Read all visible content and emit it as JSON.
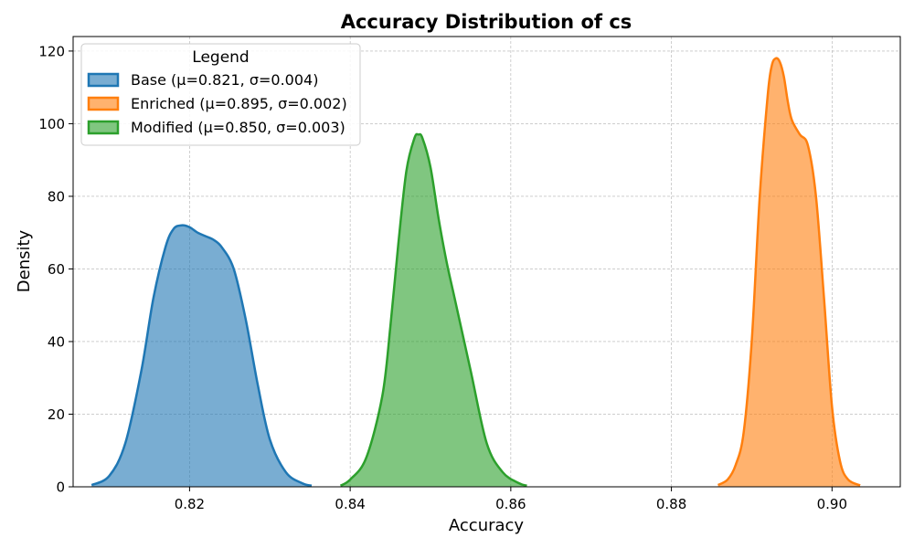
{
  "chart_data": {
    "type": "area",
    "title": "Accuracy Distribution of cs",
    "xlabel": "Accuracy",
    "ylabel": "Density",
    "xlim": [
      0.8055,
      0.9085
    ],
    "ylim": [
      0,
      124
    ],
    "xticks": [
      0.82,
      0.84,
      0.86,
      0.88,
      0.9
    ],
    "xtick_labels": [
      "0.82",
      "0.84",
      "0.86",
      "0.88",
      "0.90"
    ],
    "yticks": [
      0,
      20,
      40,
      60,
      80,
      100,
      120
    ],
    "ytick_labels": [
      "0",
      "20",
      "40",
      "60",
      "80",
      "100",
      "120"
    ],
    "grid": true,
    "legend": {
      "title": "Legend",
      "placement": "top-left"
    },
    "series": [
      {
        "name": "Base (μ=0.821, σ=0.004)",
        "color": "#1f77b4",
        "x": [
          0.8078,
          0.81,
          0.812,
          0.814,
          0.8155,
          0.817,
          0.818,
          0.819,
          0.82,
          0.821,
          0.822,
          0.823,
          0.824,
          0.8255,
          0.827,
          0.8285,
          0.83,
          0.832,
          0.834,
          0.8352
        ],
        "y": [
          0.5,
          3,
          12,
          32,
          52,
          66,
          71,
          72,
          71.5,
          70,
          69,
          68,
          66,
          60,
          46,
          28,
          13,
          4,
          1,
          0.3
        ]
      },
      {
        "name": "Enriched (μ=0.895, σ=0.002)",
        "color": "#ff7f0e",
        "x": [
          0.8858,
          0.887,
          0.888,
          0.889,
          0.89,
          0.891,
          0.892,
          0.8925,
          0.893,
          0.8935,
          0.894,
          0.8945,
          0.895,
          0.896,
          0.897,
          0.898,
          0.899,
          0.9,
          0.901,
          0.902,
          0.9035
        ],
        "y": [
          0.5,
          2,
          6,
          15,
          40,
          80,
          108,
          116,
          118,
          117,
          113,
          106,
          101,
          97,
          94,
          80,
          52,
          22,
          7,
          2,
          0.4
        ]
      },
      {
        "name": "Modified (μ=0.850, σ=0.003)",
        "color": "#2ca02c",
        "x": [
          0.8388,
          0.84,
          0.842,
          0.844,
          0.845,
          0.846,
          0.847,
          0.848,
          0.8485,
          0.849,
          0.85,
          0.851,
          0.852,
          0.853,
          0.855,
          0.857,
          0.859,
          0.861,
          0.862
        ],
        "y": [
          0.3,
          2,
          8,
          25,
          44,
          67,
          87,
          96,
          97,
          96,
          88,
          74,
          62,
          52,
          32,
          12,
          4,
          1,
          0.3
        ]
      }
    ]
  }
}
